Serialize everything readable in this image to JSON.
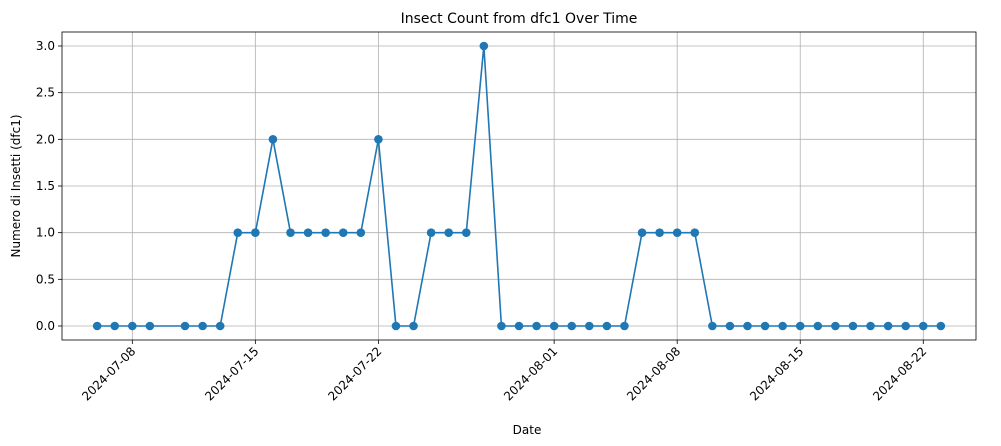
{
  "chart_data": {
    "type": "line",
    "title": "Insect Count from dfc1 Over Time",
    "xlabel": "Date",
    "ylabel": "Numero di Insetti (dfc1)",
    "x_ticks": [
      "2024-07-08",
      "2024-07-15",
      "2024-07-22",
      "2024-08-01",
      "2024-08-08",
      "2024-08-15",
      "2024-08-22"
    ],
    "y_ticks": [
      "0.0",
      "0.5",
      "1.0",
      "1.5",
      "2.0",
      "2.5",
      "3.0"
    ],
    "ylim": [
      -0.15,
      3.15
    ],
    "xlim": [
      "2024-07-04",
      "2024-08-25"
    ],
    "grid": true,
    "color": "#1f77b4",
    "series": [
      {
        "x": [
          "2024-07-06",
          "2024-07-07",
          "2024-07-08",
          "2024-07-09",
          "2024-07-11",
          "2024-07-12",
          "2024-07-13",
          "2024-07-14",
          "2024-07-15",
          "2024-07-16",
          "2024-07-17",
          "2024-07-18",
          "2024-07-19",
          "2024-07-20",
          "2024-07-21",
          "2024-07-22",
          "2024-07-23",
          "2024-07-24",
          "2024-07-25",
          "2024-07-26",
          "2024-07-27",
          "2024-07-28",
          "2024-07-29",
          "2024-07-30",
          "2024-07-31",
          "2024-08-01",
          "2024-08-02",
          "2024-08-03",
          "2024-08-04",
          "2024-08-05",
          "2024-08-06",
          "2024-08-07",
          "2024-08-08",
          "2024-08-09",
          "2024-08-10",
          "2024-08-11",
          "2024-08-12",
          "2024-08-13",
          "2024-08-14",
          "2024-08-15",
          "2024-08-16",
          "2024-08-17",
          "2024-08-18",
          "2024-08-19",
          "2024-08-20",
          "2024-08-21",
          "2024-08-22",
          "2024-08-23"
        ],
        "values": [
          0,
          0,
          0,
          0,
          0,
          0,
          0,
          1,
          1,
          2,
          1,
          1,
          1,
          1,
          1,
          2,
          0,
          0,
          1,
          1,
          1,
          3,
          0,
          0,
          0,
          0,
          0,
          0,
          0,
          0,
          1,
          1,
          1,
          1,
          0,
          0,
          0,
          0,
          0,
          0,
          0,
          0,
          0,
          0,
          0,
          0,
          0,
          0
        ]
      }
    ]
  }
}
